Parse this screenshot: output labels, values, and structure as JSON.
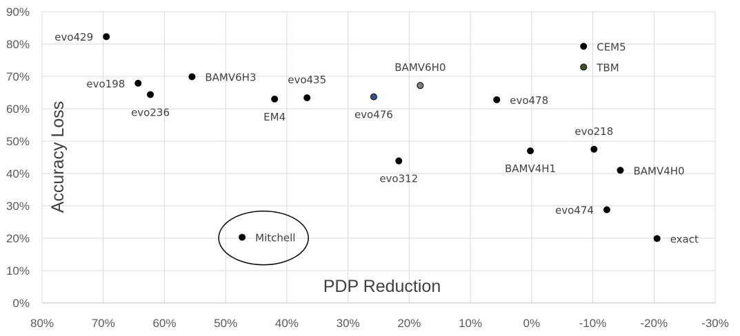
{
  "chart_data": {
    "type": "scatter",
    "title": "",
    "xlabel": "PDP Reduction",
    "ylabel": "Accuracy Loss",
    "xlim": [
      80,
      -30
    ],
    "ylim": [
      0,
      90
    ],
    "x_reversed": true,
    "x_ticks": [
      "80%",
      "70%",
      "60%",
      "50%",
      "40%",
      "30%",
      "20%",
      "10%",
      "0%",
      "-10%",
      "-20%",
      "-30%"
    ],
    "y_ticks": [
      "0%",
      "10%",
      "20%",
      "30%",
      "40%",
      "50%",
      "60%",
      "70%",
      "80%",
      "90%"
    ],
    "grid": true,
    "legend": "none",
    "highlight": "Mitchell",
    "points": [
      {
        "label": "evo429",
        "x": 69.5,
        "y": 82.3,
        "color": "#000000",
        "label_pos": "left"
      },
      {
        "label": "evo198",
        "x": 64.3,
        "y": 67.9,
        "color": "#000000",
        "label_pos": "left"
      },
      {
        "label": "evo236",
        "x": 62.3,
        "y": 64.4,
        "color": "#000000",
        "label_pos": "below"
      },
      {
        "label": "BAMV6H3",
        "x": 55.5,
        "y": 69.9,
        "color": "#000000",
        "label_pos": "right"
      },
      {
        "label": "EM4",
        "x": 42.0,
        "y": 63.0,
        "color": "#000000",
        "label_pos": "below"
      },
      {
        "label": "evo435",
        "x": 36.7,
        "y": 63.4,
        "color": "#000000",
        "label_pos": "above"
      },
      {
        "label": "evo476",
        "x": 25.8,
        "y": 63.7,
        "color": "#2f5597",
        "label_pos": "below"
      },
      {
        "label": "BAMV6H0",
        "x": 18.2,
        "y": 67.2,
        "color": "#7f7f7f",
        "label_pos": "above"
      },
      {
        "label": "evo312",
        "x": 21.7,
        "y": 43.9,
        "color": "#000000",
        "label_pos": "below"
      },
      {
        "label": "evo478",
        "x": 5.7,
        "y": 62.8,
        "color": "#000000",
        "label_pos": "right"
      },
      {
        "label": "BAMV4H1",
        "x": 0.2,
        "y": 47.0,
        "color": "#000000",
        "label_pos": "below"
      },
      {
        "label": "CEM5",
        "x": -8.5,
        "y": 79.3,
        "color": "#000000",
        "label_pos": "right"
      },
      {
        "label": "TBM",
        "x": -8.5,
        "y": 72.9,
        "color": "#375623",
        "label_pos": "right"
      },
      {
        "label": "evo218",
        "x": -10.2,
        "y": 47.5,
        "color": "#000000",
        "label_pos": "above"
      },
      {
        "label": "BAMV4H0",
        "x": -14.5,
        "y": 41.0,
        "color": "#000000",
        "label_pos": "right"
      },
      {
        "label": "evo474",
        "x": -12.3,
        "y": 28.8,
        "color": "#000000",
        "label_pos": "left"
      },
      {
        "label": "exact",
        "x": -20.5,
        "y": 19.9,
        "color": "#000000",
        "label_pos": "right"
      },
      {
        "label": "Mitchell",
        "x": 47.3,
        "y": 20.3,
        "color": "#000000",
        "label_pos": "right"
      }
    ]
  }
}
